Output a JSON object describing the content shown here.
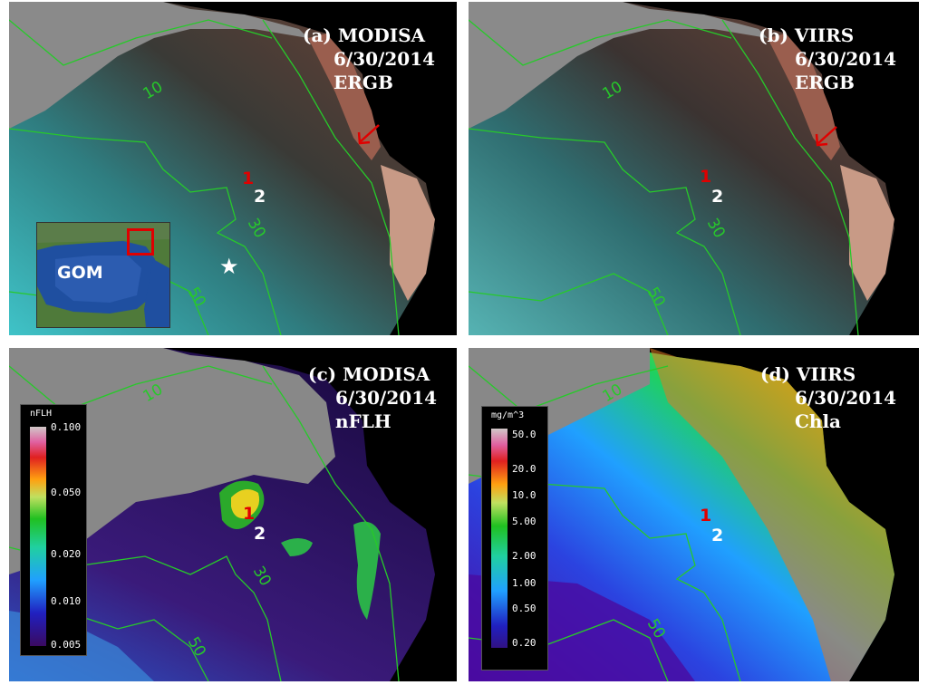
{
  "panels": [
    {
      "id": "a",
      "label_line1": "(a) MODISA",
      "label_line2": "6/30/2014",
      "label_line3": "ERGB"
    },
    {
      "id": "b",
      "label_line1": "(b) VIIRS",
      "label_line2": "6/30/2014",
      "label_line3": "ERGB"
    },
    {
      "id": "c",
      "label_line1": "(c) MODISA",
      "label_line2": "6/30/2014",
      "label_line3": "nFLH"
    },
    {
      "id": "d",
      "label_line1": "(d) VIIRS",
      "label_line2": "6/30/2014",
      "label_line3": "Chla"
    }
  ],
  "stations": {
    "s1": "1",
    "s2": "2"
  },
  "isobaths": {
    "c10": "10",
    "c30": "30",
    "c50": "50"
  },
  "inset": {
    "label": "GOM"
  },
  "colorbar_nflh": {
    "unit": "nFLH",
    "ticks": [
      "0.100",
      "0.050",
      "0.020",
      "0.010",
      "0.005"
    ]
  },
  "colorbar_chla": {
    "unit": "mg/m^3",
    "ticks": [
      "50.0",
      "20.0",
      "10.0",
      "5.00",
      "2.00",
      "1.00",
      "0.50",
      "0.20"
    ]
  },
  "colors": {
    "contour": "#27c92a",
    "station_1": "#e00000",
    "station_2": "#ffffff",
    "land": "#888888",
    "ocean_bg": "#000000"
  }
}
